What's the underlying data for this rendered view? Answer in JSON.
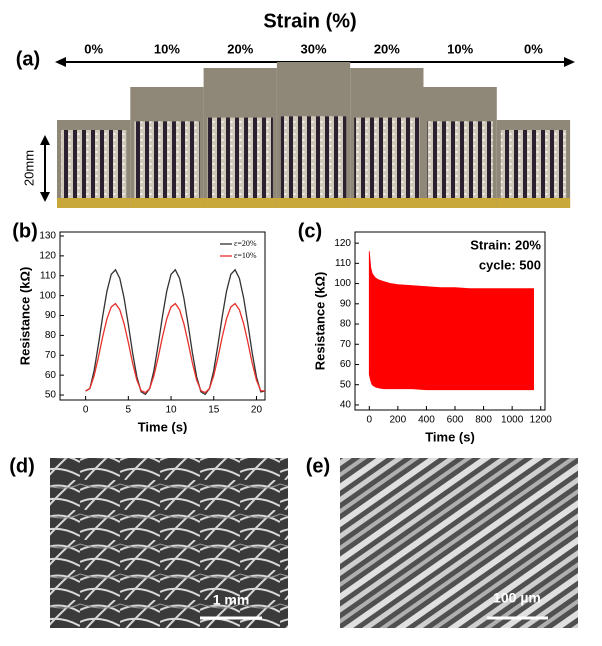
{
  "figure": {
    "panel_labels": [
      "(a)",
      "(b)",
      "(c)",
      "(d)",
      "(e)"
    ],
    "strain_title": "Strain (%)",
    "strain_labels": [
      "0%",
      "10%",
      "20%",
      "30%",
      "20%",
      "10%",
      "0%"
    ],
    "length_label": "20mm",
    "scale_bars": [
      "1 mm",
      "100 µm"
    ]
  },
  "chart_data": [
    {
      "type": "line",
      "xlabel": "Time (s)",
      "ylabel": "Resistance (kΩ)",
      "xlim": [
        -3,
        21
      ],
      "xticks": [
        0,
        5,
        10,
        15,
        20
      ],
      "ylim": [
        47.5,
        132
      ],
      "yticks": [
        50,
        60,
        70,
        80,
        90,
        100,
        110,
        120,
        130
      ],
      "x": [
        0,
        0.5,
        1,
        1.5,
        2,
        2.5,
        3,
        3.5,
        4,
        4.5,
        5,
        5.5,
        6,
        6.5,
        7,
        7.5,
        8,
        8.5,
        9,
        9.5,
        10,
        10.5,
        11,
        11.5,
        12,
        12.5,
        13,
        13.5,
        14,
        14.5,
        15,
        15.5,
        16,
        16.5,
        17,
        17.5,
        18,
        18.5,
        19,
        19.5,
        20,
        20.5,
        21
      ],
      "series": [
        {
          "name": "ε=20%",
          "color": "#333333",
          "values": [
            52,
            53.3,
            62.4,
            75.4,
            89.7,
            102.3,
            110.7,
            113,
            108.7,
            98.8,
            85.5,
            71.2,
            59.2,
            51.6,
            50.3,
            53.3,
            62.4,
            75.4,
            89.7,
            102.3,
            110.7,
            113,
            108.7,
            98.8,
            85.5,
            71.2,
            59.2,
            51.6,
            50.3,
            53.3,
            62.4,
            75.4,
            89.7,
            102.3,
            110.7,
            113,
            108.7,
            98.8,
            85.5,
            71.2,
            59.2,
            51.6,
            52
          ]
        },
        {
          "name": "ε=10%",
          "color": "#e8302a",
          "values": [
            52,
            53.3,
            59.8,
            69.1,
            79.4,
            88.4,
            94.3,
            96,
            92.9,
            85.9,
            76.4,
            66.1,
            57.5,
            52.2,
            51.2,
            53.3,
            59.8,
            69.1,
            79.4,
            88.4,
            94.3,
            96,
            92.9,
            85.9,
            76.4,
            66.1,
            57.5,
            52.2,
            51.2,
            53.3,
            59.8,
            69.1,
            79.4,
            88.4,
            94.3,
            96,
            92.9,
            85.9,
            76.4,
            66.1,
            57.5,
            52.2,
            52
          ]
        }
      ]
    },
    {
      "type": "band",
      "xlabel": "Time (s)",
      "ylabel": "Resistance (kΩ)",
      "annotations": [
        "Strain: 20%",
        "cycle: 500"
      ],
      "xlim": [
        -100,
        1230
      ],
      "xticks": [
        0,
        200,
        400,
        600,
        800,
        1000,
        1200
      ],
      "ylim": [
        37.5,
        125.5
      ],
      "yticks": [
        40,
        50,
        60,
        70,
        80,
        90,
        100,
        110,
        120
      ],
      "color": "#ff0000",
      "x": [
        0,
        10,
        20,
        40,
        60,
        100,
        150,
        200,
        300,
        400,
        500,
        600,
        700,
        800,
        900,
        1000,
        1100,
        1150
      ],
      "upper": [
        116,
        108,
        105,
        103,
        102,
        101,
        100,
        99.5,
        99,
        98.5,
        98,
        98,
        97.5,
        97.5,
        97.5,
        97.5,
        97.5,
        97.5
      ],
      "lower": [
        55,
        52,
        50,
        49,
        48.5,
        48,
        48,
        48,
        48,
        47.5,
        47.5,
        47.5,
        47.5,
        47.5,
        47.5,
        47.5,
        47.5,
        47.5
      ]
    }
  ]
}
